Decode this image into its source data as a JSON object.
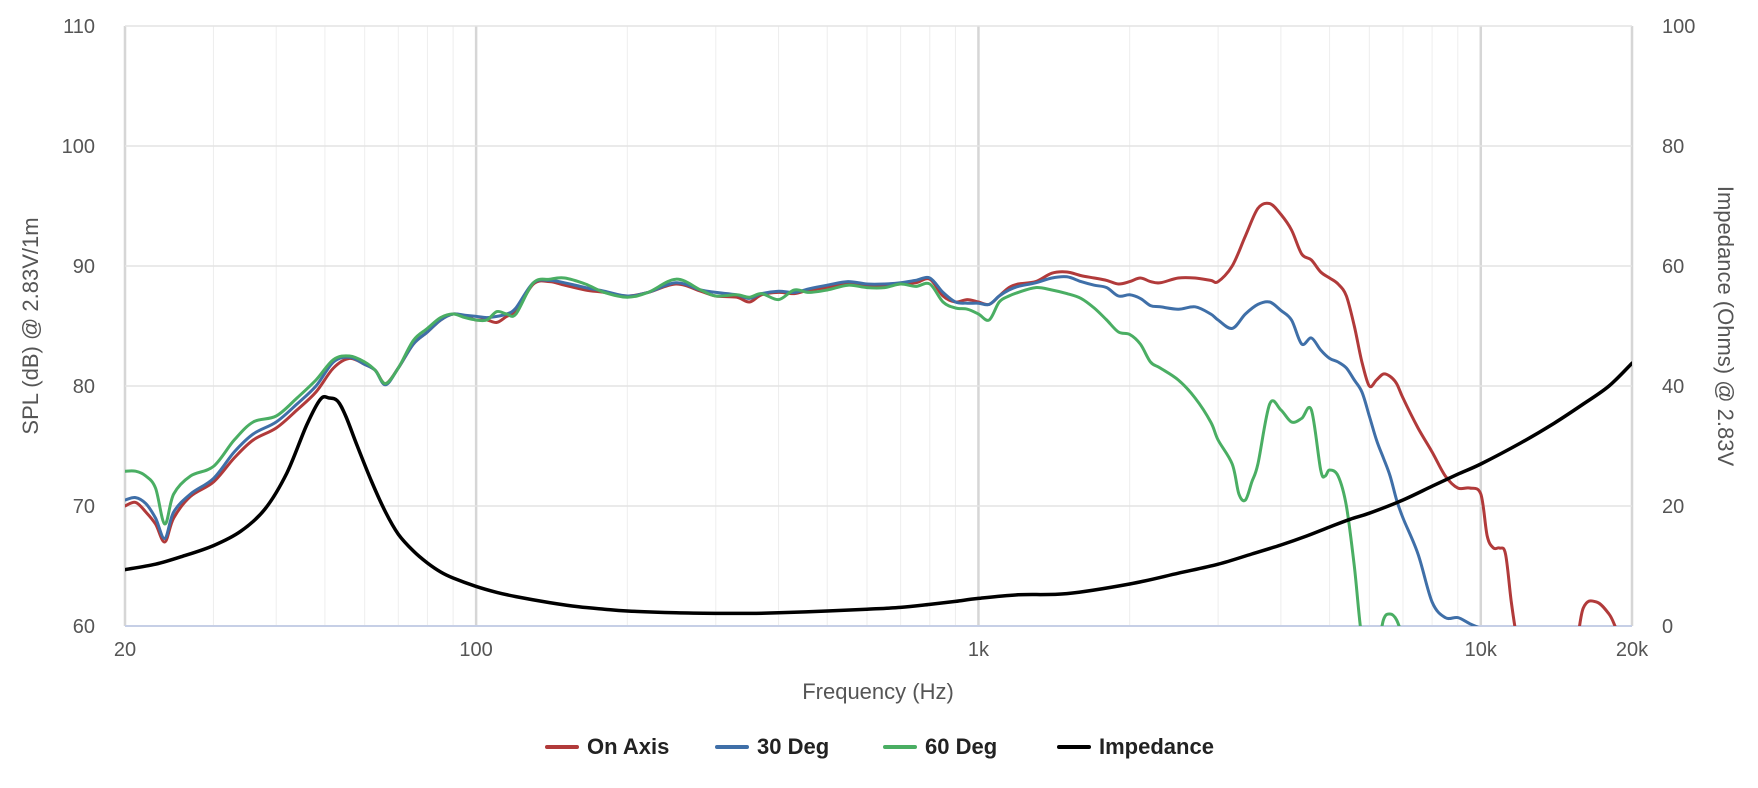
{
  "chart_data": {
    "type": "line",
    "xlabel": "Frequency (Hz)",
    "ylabel_left": "SPL (dB) @ 2.83V/1m",
    "ylabel_right": "Impedance (Ohms) @ 2.83V",
    "x_scale": "log",
    "xlim": [
      20,
      20000
    ],
    "ylim_left": [
      60,
      110
    ],
    "ylim_right": [
      0,
      100
    ],
    "x_ticks": [
      {
        "value": 20,
        "label": "20"
      },
      {
        "value": 100,
        "label": "100"
      },
      {
        "value": 1000,
        "label": "1k"
      },
      {
        "value": 10000,
        "label": "10k"
      },
      {
        "value": 20000,
        "label": "20k"
      }
    ],
    "y_ticks_left": [
      {
        "value": 60,
        "label": "60"
      },
      {
        "value": 70,
        "label": "70"
      },
      {
        "value": 80,
        "label": "80"
      },
      {
        "value": 90,
        "label": "90"
      },
      {
        "value": 100,
        "label": "100"
      },
      {
        "value": 110,
        "label": "110"
      }
    ],
    "y_ticks_right": [
      {
        "value": 0,
        "label": "0"
      },
      {
        "value": 20,
        "label": "20"
      },
      {
        "value": 40,
        "label": "40"
      },
      {
        "value": 60,
        "label": "60"
      },
      {
        "value": 80,
        "label": "80"
      },
      {
        "value": 100,
        "label": "100"
      }
    ],
    "grid": true,
    "legend_position": "bottom",
    "series": [
      {
        "name": "On Axis",
        "color": "#b13a3a",
        "axis": "left",
        "x": [
          20,
          21,
          22,
          23,
          24,
          25,
          27,
          30,
          33,
          36,
          40,
          44,
          48,
          52,
          56,
          60,
          63,
          66,
          70,
          75,
          80,
          85,
          90,
          95,
          100,
          105,
          110,
          115,
          120,
          130,
          140,
          150,
          165,
          180,
          200,
          220,
          250,
          280,
          300,
          330,
          350,
          370,
          400,
          430,
          460,
          500,
          550,
          600,
          650,
          700,
          750,
          800,
          850,
          900,
          950,
          1000,
          1050,
          1100,
          1150,
          1200,
          1300,
          1400,
          1500,
          1600,
          1700,
          1800,
          1900,
          2000,
          2100,
          2200,
          2300,
          2500,
          2700,
          2900,
          3000,
          3200,
          3400,
          3600,
          3800,
          4000,
          4200,
          4400,
          4600,
          4800,
          5000,
          5200,
          5400,
          5600,
          5800,
          6000,
          6200,
          6400,
          6600,
          6800,
          7000,
          7500,
          8000,
          8500,
          9000,
          9500,
          10000,
          10300,
          10600,
          10900,
          11200,
          11500,
          11800,
          12000,
          12300,
          15000,
          16000,
          17000,
          18000,
          18500
        ],
        "y": [
          70.0,
          70.3,
          69.5,
          68.5,
          67.0,
          69.0,
          70.8,
          72.0,
          74.0,
          75.5,
          76.5,
          78.0,
          79.5,
          81.5,
          82.3,
          81.8,
          81.3,
          80.2,
          81.5,
          83.5,
          84.5,
          85.5,
          86.0,
          85.8,
          85.5,
          85.5,
          85.3,
          85.8,
          86.2,
          88.5,
          88.7,
          88.4,
          88.0,
          87.8,
          87.5,
          87.8,
          88.5,
          87.9,
          87.5,
          87.4,
          87.0,
          87.6,
          87.8,
          87.7,
          88.0,
          88.2,
          88.5,
          88.4,
          88.4,
          88.5,
          88.6,
          88.9,
          87.5,
          87.0,
          87.2,
          87.0,
          86.8,
          87.5,
          88.2,
          88.5,
          88.7,
          89.4,
          89.5,
          89.2,
          89.0,
          88.8,
          88.5,
          88.7,
          89.0,
          88.7,
          88.6,
          89.0,
          89.0,
          88.8,
          88.7,
          90.0,
          92.5,
          94.8,
          95.2,
          94.3,
          93.0,
          91.0,
          90.5,
          89.5,
          89.0,
          88.5,
          87.5,
          85.0,
          82.0,
          80.0,
          80.5,
          81.0,
          80.8,
          80.2,
          79.0,
          76.5,
          74.5,
          72.5,
          71.5,
          71.5,
          71.0,
          67.5,
          66.5,
          66.5,
          66.0,
          62.0,
          59.0,
          58.0,
          57.0,
          57.0,
          61.5,
          62.0,
          61.0,
          60.0
        ]
      },
      {
        "name": "30 Deg",
        "color": "#3f6fa8",
        "axis": "left",
        "x": [
          20,
          21,
          22,
          23,
          24,
          25,
          27,
          30,
          33,
          36,
          40,
          44,
          48,
          52,
          56,
          60,
          63,
          66,
          70,
          75,
          80,
          85,
          90,
          95,
          100,
          105,
          110,
          115,
          120,
          130,
          140,
          150,
          165,
          180,
          200,
          220,
          250,
          280,
          300,
          330,
          350,
          370,
          400,
          430,
          460,
          500,
          550,
          600,
          650,
          700,
          750,
          800,
          850,
          900,
          950,
          1000,
          1050,
          1100,
          1150,
          1200,
          1300,
          1400,
          1500,
          1600,
          1700,
          1800,
          1900,
          2000,
          2100,
          2200,
          2300,
          2500,
          2700,
          2900,
          3000,
          3200,
          3400,
          3600,
          3800,
          4000,
          4200,
          4400,
          4600,
          4800,
          5000,
          5200,
          5400,
          5600,
          5800,
          6000,
          6200,
          6400,
          6600,
          6800,
          7000,
          7500,
          8000,
          8500,
          9000,
          9500,
          10000
        ],
        "y": [
          70.5,
          70.7,
          70.2,
          69.0,
          67.3,
          69.5,
          71.0,
          72.3,
          74.5,
          76.0,
          77.0,
          78.5,
          80.0,
          82.0,
          82.4,
          81.8,
          81.3,
          80.1,
          81.5,
          83.5,
          84.5,
          85.5,
          86.0,
          85.9,
          85.8,
          85.7,
          85.8,
          86.0,
          86.5,
          88.6,
          88.8,
          88.6,
          88.2,
          87.9,
          87.5,
          87.8,
          88.6,
          88.0,
          87.8,
          87.6,
          87.3,
          87.7,
          87.9,
          87.8,
          88.1,
          88.4,
          88.7,
          88.5,
          88.5,
          88.6,
          88.8,
          89.0,
          87.8,
          87.0,
          86.9,
          86.9,
          86.8,
          87.5,
          88.0,
          88.3,
          88.6,
          89.0,
          89.1,
          88.7,
          88.4,
          88.2,
          87.5,
          87.6,
          87.3,
          86.7,
          86.6,
          86.4,
          86.6,
          86.0,
          85.5,
          84.8,
          86.0,
          86.8,
          87.0,
          86.3,
          85.5,
          83.5,
          84.0,
          83.0,
          82.3,
          82.0,
          81.5,
          80.5,
          79.5,
          77.5,
          75.5,
          74.0,
          72.5,
          70.5,
          69.0,
          66.0,
          62.0,
          60.7,
          60.7,
          60.2,
          59.8
        ]
      },
      {
        "name": "60 Deg",
        "color": "#4aae63",
        "axis": "left",
        "x": [
          20,
          21,
          22,
          23,
          24,
          25,
          27,
          30,
          33,
          36,
          40,
          44,
          48,
          52,
          56,
          60,
          63,
          66,
          70,
          75,
          80,
          85,
          90,
          95,
          100,
          105,
          110,
          115,
          120,
          130,
          140,
          150,
          165,
          180,
          200,
          220,
          250,
          280,
          300,
          330,
          350,
          370,
          400,
          430,
          460,
          500,
          550,
          600,
          650,
          700,
          750,
          800,
          850,
          900,
          950,
          1000,
          1050,
          1100,
          1150,
          1200,
          1300,
          1400,
          1500,
          1600,
          1700,
          1800,
          1900,
          2000,
          2100,
          2200,
          2300,
          2500,
          2700,
          2900,
          3000,
          3200,
          3300,
          3400,
          3500,
          3600,
          3800,
          4000,
          4200,
          4400,
          4600,
          4800,
          4900,
          5000,
          5200,
          5400,
          5600,
          5800,
          6000,
          6200,
          6400,
          6600,
          6800,
          7000
        ],
        "y": [
          72.9,
          72.9,
          72.5,
          71.5,
          68.5,
          71.0,
          72.5,
          73.3,
          75.5,
          77.0,
          77.5,
          79.0,
          80.5,
          82.2,
          82.5,
          82.0,
          81.3,
          80.2,
          81.5,
          83.8,
          84.8,
          85.7,
          86.0,
          85.7,
          85.5,
          85.5,
          86.2,
          86.0,
          86.0,
          88.6,
          88.9,
          89.0,
          88.5,
          87.8,
          87.4,
          87.8,
          88.9,
          88.0,
          87.5,
          87.6,
          87.4,
          87.7,
          87.2,
          88.0,
          87.8,
          88.0,
          88.4,
          88.2,
          88.2,
          88.5,
          88.3,
          88.5,
          87.0,
          86.5,
          86.4,
          86.0,
          85.5,
          87.0,
          87.5,
          87.8,
          88.2,
          88.0,
          87.7,
          87.3,
          86.5,
          85.5,
          84.5,
          84.3,
          83.5,
          82.0,
          81.5,
          80.5,
          79.0,
          77.0,
          75.5,
          73.5,
          71.0,
          70.5,
          72.0,
          73.5,
          78.5,
          78.0,
          77.0,
          77.3,
          78.0,
          73.0,
          72.5,
          73.0,
          72.5,
          70.0,
          65.0,
          59.0,
          58.0,
          57.5,
          60.5,
          61.0,
          60.5,
          59.0
        ]
      },
      {
        "name": "Impedance",
        "color": "#000000",
        "axis": "right",
        "x": [
          20,
          23,
          26,
          30,
          34,
          38,
          42,
          46,
          49,
          51,
          53,
          55,
          58,
          62,
          66,
          70,
          75,
          80,
          85,
          90,
          100,
          110,
          120,
          140,
          160,
          180,
          200,
          250,
          300,
          350,
          400,
          500,
          600,
          700,
          800,
          900,
          1000,
          1200,
          1500,
          2000,
          2500,
          3000,
          3500,
          4000,
          4500,
          5000,
          5500,
          6000,
          7000,
          8000,
          9000,
          10000,
          12000,
          14000,
          16000,
          18000,
          20000
        ],
        "y": [
          9.4,
          10.3,
          11.6,
          13.4,
          15.8,
          19.5,
          25.5,
          33.5,
          37.8,
          38.0,
          37.5,
          35.0,
          30.0,
          24.0,
          19.0,
          15.3,
          12.5,
          10.5,
          9.0,
          8.0,
          6.6,
          5.6,
          4.9,
          3.9,
          3.2,
          2.8,
          2.5,
          2.2,
          2.1,
          2.1,
          2.2,
          2.5,
          2.8,
          3.1,
          3.6,
          4.1,
          4.6,
          5.2,
          5.4,
          7.0,
          8.8,
          10.3,
          12.0,
          13.5,
          15.0,
          16.5,
          17.8,
          18.8,
          21.0,
          23.3,
          25.3,
          27.0,
          30.5,
          33.8,
          37.0,
          40.0,
          43.8
        ]
      }
    ]
  }
}
